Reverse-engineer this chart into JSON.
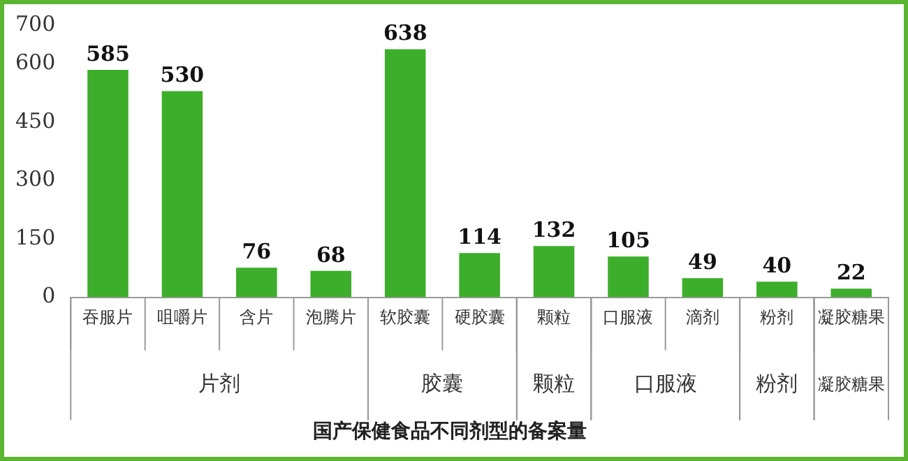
{
  "chart_data": {
    "type": "bar",
    "title": "国产保健食品不同剂型的备案量",
    "categories": [
      "吞服片",
      "咀嚼片",
      "含片",
      "泡腾片",
      "软胶囊",
      "硬胶囊",
      "颗粒",
      "口服液",
      "滴剂",
      "粉剂",
      "凝胶糖果"
    ],
    "values": [
      585,
      530,
      76,
      68,
      638,
      114,
      132,
      105,
      49,
      40,
      22
    ],
    "color": "#3dae2b",
    "ylim": [
      0,
      700
    ],
    "yticks": [
      0,
      150,
      300,
      450,
      600,
      700
    ],
    "grid": false,
    "legend": false,
    "data_labels": true,
    "annotations": [
      "片剂",
      "胶囊",
      "颗粒",
      "口服液",
      "粉剂",
      "凝胶糖果"
    ]
  }
}
